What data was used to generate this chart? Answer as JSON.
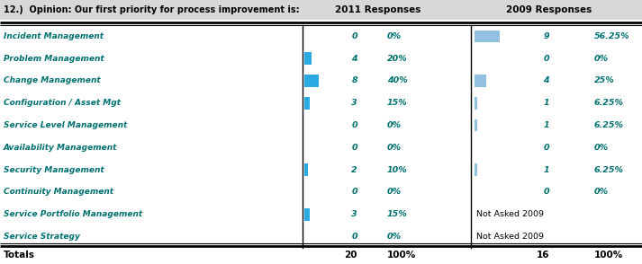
{
  "title": "12.)  Opinion: Our first priority for process improvement is:",
  "col2011": "2011 Responses",
  "col2009": "2009 Responses",
  "rows": [
    {
      "label": "Incident Management",
      "v2011": 0,
      "p2011": "0%",
      "v2009": 9,
      "p2009": "56.25%",
      "bar2011": 0.0,
      "bar2009": 0.5625
    },
    {
      "label": "Problem Management",
      "v2011": 4,
      "p2011": "20%",
      "v2009": 0,
      "p2009": "0%",
      "bar2011": 0.2,
      "bar2009": 0.0
    },
    {
      "label": "Change Management",
      "v2011": 8,
      "p2011": "40%",
      "v2009": 4,
      "p2009": "25%",
      "bar2011": 0.4,
      "bar2009": 0.25
    },
    {
      "label": "Configuration / Asset Mgt",
      "v2011": 3,
      "p2011": "15%",
      "v2009": 1,
      "p2009": "6.25%",
      "bar2011": 0.15,
      "bar2009": 0.0625
    },
    {
      "label": "Service Level Management",
      "v2011": 0,
      "p2011": "0%",
      "v2009": 1,
      "p2009": "6.25%",
      "bar2011": 0.0,
      "bar2009": 0.0625
    },
    {
      "label": "Availability Management",
      "v2011": 0,
      "p2011": "0%",
      "v2009": 0,
      "p2009": "0%",
      "bar2011": 0.0,
      "bar2009": 0.0
    },
    {
      "label": "Security Management",
      "v2011": 2,
      "p2011": "10%",
      "v2009": 1,
      "p2009": "6.25%",
      "bar2011": 0.1,
      "bar2009": 0.0625
    },
    {
      "label": "Continuity Management",
      "v2011": 0,
      "p2011": "0%",
      "v2009": 0,
      "p2009": "0%",
      "bar2011": 0.0,
      "bar2009": 0.0
    },
    {
      "label": "Service Portfolio Management",
      "v2011": 3,
      "p2011": "15%",
      "v2009": null,
      "p2009": "Not Asked 2009",
      "bar2011": 0.15,
      "bar2009": null
    },
    {
      "label": "Service Strategy",
      "v2011": 0,
      "p2011": "0%",
      "v2009": null,
      "p2009": "Not Asked 2009",
      "bar2011": 0.0,
      "bar2009": null
    }
  ],
  "totals": {
    "label": "Totals",
    "v2011": 20,
    "p2011": "100%",
    "v2009": 16,
    "p2009": "100%"
  },
  "label_color": "#007070",
  "bar_color_2011": "#29ABE2",
  "bar_color_2009": "#92C0E0",
  "text_color_data": "#007070",
  "totals_color": "#000000",
  "header_color": "#000000",
  "not_asked_color": "#000000"
}
